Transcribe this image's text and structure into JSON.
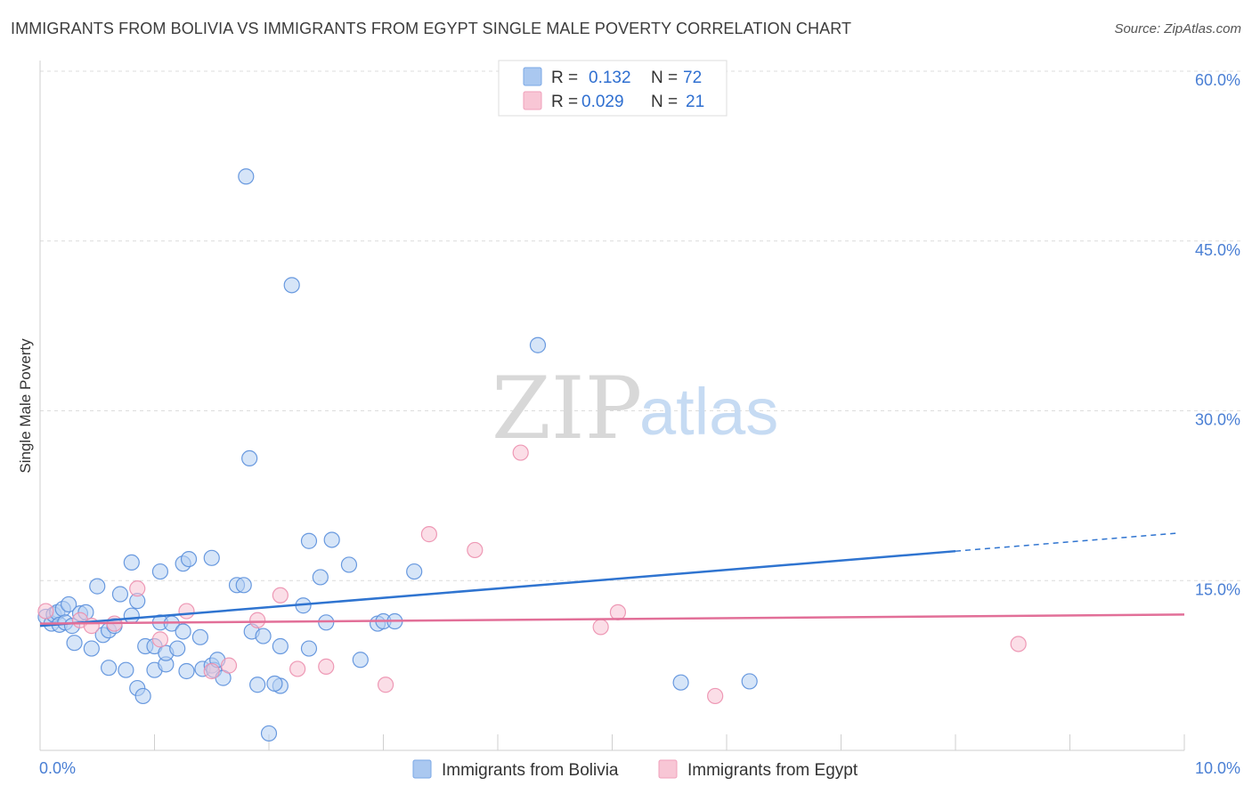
{
  "title": "IMMIGRANTS FROM BOLIVIA VS IMMIGRANTS FROM EGYPT SINGLE MALE POVERTY CORRELATION CHART",
  "source": "Source: ZipAtlas.com",
  "watermark": {
    "part1": "ZIP",
    "part2": "atlas"
  },
  "legend": [
    {
      "r_label": "R =",
      "r_value": "0.132",
      "n_label": "N =",
      "n_value": "72",
      "color": "#7aa7e6",
      "fill": "#aac8f0"
    },
    {
      "r_label": "R =",
      "r_value": "0.029",
      "n_label": "N =",
      "n_value": "21",
      "color": "#f0a0bb",
      "fill": "#f8c6d5"
    }
  ],
  "chart_data": {
    "type": "scatter",
    "title": "IMMIGRANTS FROM BOLIVIA VS IMMIGRANTS FROM EGYPT SINGLE MALE POVERTY CORRELATION CHART",
    "xlabel": "",
    "ylabel": "Single Male Poverty",
    "xlim": [
      0,
      10
    ],
    "ylim": [
      0,
      60
    ],
    "y_ticks": [
      15,
      30,
      45,
      60
    ],
    "y_tick_labels": [
      "15.0%",
      "30.0%",
      "45.0%",
      "60.0%"
    ],
    "x_tick_labels": {
      "left": "0.0%",
      "right": "10.0%"
    },
    "grid": true,
    "legend_position": "top-center",
    "series": [
      {
        "name": "Immigrants from Bolivia",
        "color": "#5a8fdc",
        "fill": "#b4cff2",
        "trend": {
          "x0": 0,
          "y0": 11.0,
          "x1": 8.0,
          "y1": 17.6,
          "dashed_to_x": 9.95,
          "dashed_to_y": 19.2,
          "color": "#2f74d0"
        },
        "points": [
          [
            0.05,
            11.8
          ],
          [
            0.1,
            11.2
          ],
          [
            0.12,
            12.0
          ],
          [
            0.15,
            12.2
          ],
          [
            0.17,
            11.1
          ],
          [
            0.2,
            12.5
          ],
          [
            0.22,
            11.3
          ],
          [
            0.25,
            12.9
          ],
          [
            0.28,
            11.0
          ],
          [
            0.3,
            9.5
          ],
          [
            0.35,
            12.1
          ],
          [
            0.4,
            12.2
          ],
          [
            0.45,
            9.0
          ],
          [
            0.5,
            14.5
          ],
          [
            0.55,
            10.2
          ],
          [
            0.6,
            7.3
          ],
          [
            0.6,
            10.6
          ],
          [
            0.65,
            11.0
          ],
          [
            0.7,
            13.8
          ],
          [
            0.75,
            7.1
          ],
          [
            0.8,
            11.9
          ],
          [
            0.85,
            13.2
          ],
          [
            0.8,
            16.6
          ],
          [
            0.85,
            5.5
          ],
          [
            0.9,
            4.8
          ],
          [
            0.92,
            9.2
          ],
          [
            1.0,
            9.2
          ],
          [
            1.0,
            7.1
          ],
          [
            1.05,
            15.8
          ],
          [
            1.05,
            11.3
          ],
          [
            1.1,
            7.6
          ],
          [
            1.1,
            8.6
          ],
          [
            1.15,
            11.2
          ],
          [
            1.2,
            9.0
          ],
          [
            1.25,
            16.5
          ],
          [
            1.25,
            10.5
          ],
          [
            1.28,
            7.0
          ],
          [
            1.3,
            16.9
          ],
          [
            1.4,
            10.0
          ],
          [
            1.42,
            7.2
          ],
          [
            1.5,
            7.5
          ],
          [
            1.5,
            17.0
          ],
          [
            1.52,
            7.1
          ],
          [
            1.55,
            8.0
          ],
          [
            1.6,
            6.4
          ],
          [
            1.72,
            14.6
          ],
          [
            1.78,
            14.6
          ],
          [
            1.8,
            50.7
          ],
          [
            1.83,
            25.8
          ],
          [
            1.85,
            10.5
          ],
          [
            1.9,
            5.8
          ],
          [
            1.95,
            10.1
          ],
          [
            2.0,
            1.5
          ],
          [
            2.1,
            5.7
          ],
          [
            2.1,
            9.2
          ],
          [
            2.2,
            41.1
          ],
          [
            2.3,
            12.8
          ],
          [
            2.35,
            9.0
          ],
          [
            2.35,
            18.5
          ],
          [
            2.45,
            15.3
          ],
          [
            2.5,
            11.3
          ],
          [
            2.55,
            18.6
          ],
          [
            2.7,
            16.4
          ],
          [
            2.8,
            8.0
          ],
          [
            2.95,
            11.2
          ],
          [
            3.0,
            11.4
          ],
          [
            3.1,
            11.4
          ],
          [
            3.27,
            15.8
          ],
          [
            4.35,
            35.8
          ],
          [
            5.6,
            6.0
          ],
          [
            6.2,
            6.1
          ],
          [
            2.05,
            5.9
          ]
        ]
      },
      {
        "name": "Immigrants from Egypt",
        "color": "#ec8fae",
        "fill": "#f8c3d3",
        "trend": {
          "x0": 0,
          "y0": 11.2,
          "x1": 10.0,
          "y1": 12.0,
          "color": "#e26f98"
        },
        "points": [
          [
            0.05,
            12.3
          ],
          [
            0.35,
            11.5
          ],
          [
            0.45,
            11.0
          ],
          [
            0.65,
            11.2
          ],
          [
            0.85,
            14.3
          ],
          [
            1.05,
            9.8
          ],
          [
            1.28,
            12.3
          ],
          [
            1.5,
            7.0
          ],
          [
            1.65,
            7.5
          ],
          [
            1.9,
            11.5
          ],
          [
            2.1,
            13.7
          ],
          [
            2.25,
            7.2
          ],
          [
            2.5,
            7.4
          ],
          [
            3.02,
            5.8
          ],
          [
            3.4,
            19.1
          ],
          [
            3.8,
            17.7
          ],
          [
            4.2,
            26.3
          ],
          [
            4.9,
            10.9
          ],
          [
            5.05,
            12.2
          ],
          [
            5.9,
            4.8
          ],
          [
            8.55,
            9.4
          ]
        ]
      }
    ]
  },
  "bottom_legend": [
    {
      "label": "Immigrants from Bolivia",
      "color": "#7aa7e6",
      "fill": "#aac8f0"
    },
    {
      "label": "Immigrants from Egypt",
      "color": "#f0a0bb",
      "fill": "#f8c6d5"
    }
  ]
}
